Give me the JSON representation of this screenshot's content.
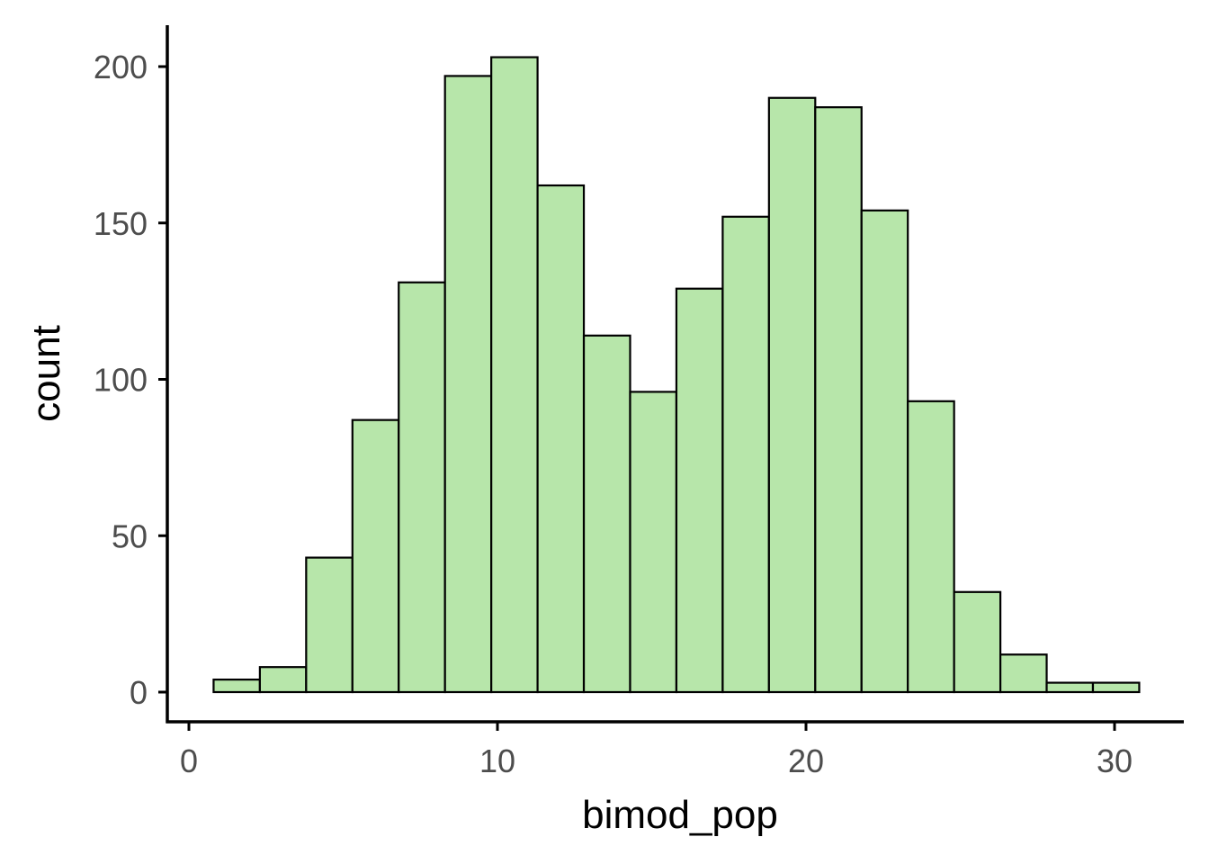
{
  "chart_data": {
    "type": "bar",
    "subtype": "histogram",
    "xlabel": "bimod_pop",
    "ylabel": "count",
    "xlim": [
      0.0,
      31.5
    ],
    "ylim": [
      0,
      212
    ],
    "x_ticks": [
      0,
      10,
      20,
      30
    ],
    "y_ticks": [
      0,
      50,
      100,
      150,
      200
    ],
    "grid": false,
    "legend": "none",
    "bar_fill": "#b7e6aa",
    "bar_outline": "#000000",
    "bins": [
      {
        "start": 0.8,
        "end": 2.3,
        "count": 4
      },
      {
        "start": 2.3,
        "end": 3.8,
        "count": 8
      },
      {
        "start": 3.8,
        "end": 5.3,
        "count": 43
      },
      {
        "start": 5.3,
        "end": 6.8,
        "count": 87
      },
      {
        "start": 6.8,
        "end": 8.3,
        "count": 131
      },
      {
        "start": 8.3,
        "end": 9.8,
        "count": 197
      },
      {
        "start": 9.8,
        "end": 11.3,
        "count": 203
      },
      {
        "start": 11.3,
        "end": 12.8,
        "count": 162
      },
      {
        "start": 12.8,
        "end": 14.3,
        "count": 114
      },
      {
        "start": 14.3,
        "end": 15.8,
        "count": 96
      },
      {
        "start": 15.8,
        "end": 17.3,
        "count": 129
      },
      {
        "start": 17.3,
        "end": 18.8,
        "count": 152
      },
      {
        "start": 18.8,
        "end": 20.3,
        "count": 190
      },
      {
        "start": 20.3,
        "end": 21.8,
        "count": 187
      },
      {
        "start": 21.8,
        "end": 23.3,
        "count": 154
      },
      {
        "start": 23.3,
        "end": 24.8,
        "count": 93
      },
      {
        "start": 24.8,
        "end": 26.3,
        "count": 32
      },
      {
        "start": 26.3,
        "end": 27.8,
        "count": 12
      },
      {
        "start": 27.8,
        "end": 29.3,
        "count": 3
      },
      {
        "start": 29.3,
        "end": 30.8,
        "count": 3
      }
    ]
  }
}
